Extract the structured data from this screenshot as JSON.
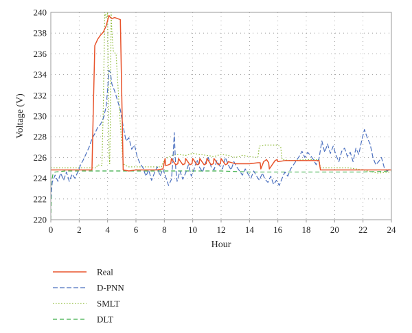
{
  "chart_data": {
    "type": "line",
    "title": "",
    "xlabel": "Hour",
    "ylabel": "Voltage (V)",
    "xlim": [
      0,
      24
    ],
    "ylim": [
      220,
      240
    ],
    "x_ticks": [
      0,
      2,
      4,
      6,
      8,
      10,
      12,
      14,
      16,
      18,
      20,
      22,
      24
    ],
    "y_ticks": [
      220,
      222,
      224,
      226,
      228,
      230,
      232,
      234,
      236,
      238,
      240
    ],
    "grid": "dotted",
    "legend_position": "below-left",
    "series": [
      {
        "name": "Real",
        "color": "#e8532b",
        "dash": "solid",
        "x": [
          0,
          2.9,
          3.0,
          3.1,
          3.3,
          3.5,
          3.7,
          3.8,
          3.9,
          4.0,
          4.1,
          4.2,
          4.3,
          4.5,
          4.7,
          4.9,
          5.0,
          5.1,
          5.5,
          6.0,
          7.0,
          7.5,
          7.9,
          8.05,
          8.1,
          8.3,
          8.45,
          8.5,
          8.8,
          8.95,
          9.0,
          9.3,
          9.45,
          9.5,
          9.8,
          9.95,
          10.0,
          10.3,
          10.45,
          10.5,
          10.8,
          10.95,
          11.0,
          11.3,
          11.45,
          11.5,
          11.8,
          11.95,
          12.0,
          12.3,
          12.45,
          12.5,
          13.0,
          14.0,
          14.6,
          14.75,
          14.8,
          15.0,
          15.2,
          15.35,
          15.4,
          15.8,
          15.95,
          16.0,
          16.5,
          17.0,
          18.0,
          18.9,
          19.0,
          19.5,
          20.0,
          21.0,
          22.0,
          23.0,
          24.0
        ],
        "y": [
          224.8,
          224.8,
          231.0,
          236.8,
          237.4,
          237.8,
          238.1,
          238.4,
          238.7,
          239.2,
          239.7,
          239.5,
          239.4,
          239.5,
          239.4,
          239.3,
          232.0,
          224.8,
          224.7,
          224.8,
          224.8,
          224.8,
          224.9,
          225.9,
          225.2,
          225.3,
          225.4,
          225.9,
          225.3,
          225.4,
          225.9,
          225.3,
          225.4,
          225.9,
          225.3,
          225.4,
          225.9,
          225.3,
          225.4,
          225.9,
          225.3,
          225.4,
          225.9,
          225.3,
          225.4,
          225.9,
          225.3,
          225.4,
          225.9,
          225.3,
          225.4,
          225.6,
          225.4,
          225.4,
          225.5,
          225.5,
          224.9,
          225.6,
          225.8,
          225.5,
          224.9,
          225.7,
          225.8,
          225.6,
          225.7,
          225.7,
          225.7,
          225.7,
          224.8,
          224.8,
          224.8,
          224.8,
          224.8,
          224.8,
          224.8
        ]
      },
      {
        "name": "D-PNN",
        "color": "#4a6fbf",
        "dash": "long",
        "x": [
          0,
          0.1,
          0.3,
          0.5,
          0.7,
          0.9,
          1.1,
          1.3,
          1.5,
          1.7,
          1.9,
          2.1,
          2.3,
          2.5,
          2.7,
          2.9,
          3.1,
          3.3,
          3.5,
          3.7,
          3.9,
          4.0,
          4.1,
          4.2,
          4.3,
          4.5,
          4.7,
          4.9,
          5.1,
          5.3,
          5.5,
          5.7,
          5.9,
          6.1,
          6.3,
          6.5,
          6.7,
          6.9,
          7.1,
          7.3,
          7.5,
          7.7,
          7.9,
          8.1,
          8.3,
          8.5,
          8.6,
          8.7,
          8.8,
          8.9,
          9.1,
          9.3,
          9.5,
          9.7,
          9.9,
          10.1,
          10.3,
          10.5,
          10.7,
          10.9,
          11.1,
          11.3,
          11.5,
          11.7,
          11.9,
          12.1,
          12.3,
          12.5,
          12.7,
          12.9,
          13.1,
          13.3,
          13.5,
          13.7,
          13.9,
          14.1,
          14.3,
          14.5,
          14.7,
          14.9,
          15.1,
          15.3,
          15.5,
          15.7,
          15.9,
          16.1,
          16.3,
          16.5,
          16.7,
          16.9,
          17.1,
          17.3,
          17.5,
          17.7,
          17.9,
          18.1,
          18.3,
          18.5,
          18.7,
          18.9,
          19.1,
          19.3,
          19.5,
          19.7,
          19.9,
          20.1,
          20.3,
          20.5,
          20.7,
          20.9,
          21.1,
          21.3,
          21.5,
          21.7,
          21.9,
          22.1,
          22.3,
          22.5,
          22.7,
          22.9,
          23.1,
          23.3,
          23.5,
          23.7,
          23.9,
          24.0
        ],
        "y": [
          222.0,
          223.6,
          224.3,
          223.7,
          224.5,
          223.8,
          224.6,
          223.7,
          224.4,
          224.0,
          224.6,
          225.3,
          225.8,
          226.4,
          227.0,
          227.8,
          228.3,
          228.9,
          229.2,
          229.8,
          230.9,
          232.5,
          234.4,
          234.2,
          233.1,
          232.4,
          231.5,
          230.6,
          229.0,
          227.6,
          227.9,
          226.8,
          227.2,
          226.0,
          225.4,
          225.0,
          224.2,
          224.8,
          223.8,
          224.5,
          225.1,
          224.2,
          224.9,
          224.1,
          223.3,
          223.9,
          225.6,
          228.4,
          225.0,
          223.7,
          224.7,
          223.9,
          224.5,
          225.3,
          224.2,
          224.9,
          225.8,
          225.0,
          224.6,
          225.5,
          226.0,
          225.1,
          224.8,
          225.7,
          225.2,
          224.9,
          226.0,
          225.3,
          224.8,
          225.6,
          225.1,
          224.7,
          224.3,
          224.9,
          224.4,
          224.0,
          224.7,
          224.2,
          223.8,
          224.5,
          223.9,
          223.6,
          224.2,
          223.4,
          223.8,
          223.3,
          224.0,
          224.6,
          224.2,
          224.9,
          225.3,
          225.7,
          226.1,
          226.6,
          226.0,
          226.5,
          226.2,
          225.8,
          225.3,
          225.9,
          227.6,
          226.5,
          227.3,
          226.4,
          227.1,
          226.2,
          225.6,
          226.6,
          226.9,
          226.1,
          226.5,
          225.6,
          226.9,
          226.3,
          227.6,
          228.7,
          227.9,
          227.3,
          226.0,
          225.3,
          225.6,
          226.0,
          225.0,
          224.7,
          224.9,
          224.8
        ]
      },
      {
        "name": "SMLT",
        "color": "#8fbc3a",
        "dash": "dotted",
        "x": [
          0,
          2.9,
          3.2,
          3.3,
          3.6,
          3.7,
          3.8,
          3.9,
          4.0,
          4.1,
          4.15,
          4.2,
          4.25,
          4.3,
          4.4,
          4.5,
          4.6,
          4.7,
          4.9,
          5.1,
          5.3,
          5.5,
          6.0,
          7.0,
          7.8,
          8.0,
          8.5,
          9.0,
          9.5,
          10.0,
          10.5,
          11.0,
          11.5,
          12.0,
          12.5,
          13.0,
          13.5,
          14.0,
          14.5,
          14.6,
          14.7,
          15.0,
          16.0,
          16.2,
          16.3,
          17.0,
          18.0,
          18.9,
          19.0,
          19.5,
          20.0,
          21.0,
          22.0,
          23.0,
          24.0
        ],
        "y": [
          225.0,
          225.0,
          225.0,
          225.3,
          225.2,
          231.0,
          240.0,
          239.4,
          240.0,
          226.5,
          225.4,
          230.0,
          240.0,
          238.2,
          236.3,
          236.1,
          236.0,
          233.6,
          229.2,
          225.4,
          225.2,
          225.1,
          225.1,
          225.1,
          225.1,
          225.8,
          226.2,
          226.3,
          226.2,
          226.4,
          226.3,
          226.2,
          226.1,
          226.3,
          226.2,
          226.0,
          226.2,
          226.1,
          226.0,
          226.1,
          227.1,
          227.2,
          227.2,
          227.0,
          225.8,
          225.7,
          225.8,
          225.8,
          225.0,
          225.0,
          225.0,
          225.0,
          224.8,
          224.5,
          224.6
        ]
      },
      {
        "name": "DLT",
        "color": "#3cae49",
        "dash": "dash",
        "x": [
          0,
          0.05,
          0.1,
          0.15,
          0.3,
          1,
          2,
          3,
          4,
          5,
          6,
          8,
          10,
          12,
          14,
          16,
          18,
          20,
          22,
          24
        ],
        "y": [
          220.0,
          223.0,
          224.0,
          224.4,
          224.6,
          224.7,
          224.7,
          224.7,
          224.7,
          224.7,
          224.7,
          224.7,
          224.7,
          224.7,
          224.6,
          224.6,
          224.6,
          224.6,
          224.6,
          224.7
        ]
      }
    ]
  }
}
